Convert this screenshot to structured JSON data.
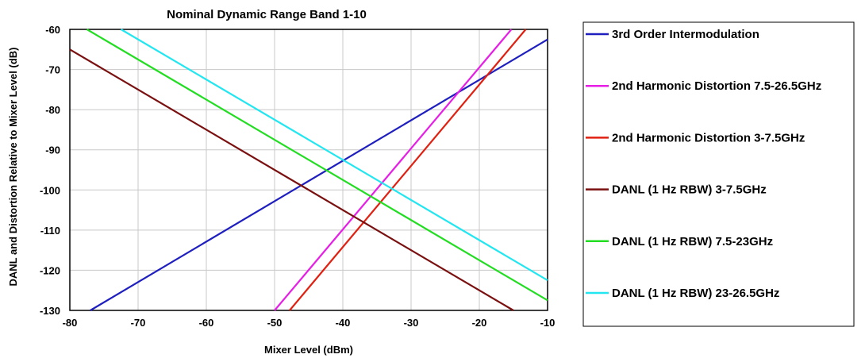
{
  "chart_data": {
    "type": "line",
    "title": "Nominal Dynamic Range Band 1-10",
    "xlabel": "Mixer Level (dBm)",
    "ylabel": "DANL and Distortion Relative to Mixer Level (dB)",
    "xlim": [
      -80,
      -10
    ],
    "ylim": [
      -130,
      -60
    ],
    "xticks": [
      -80,
      -70,
      -60,
      -50,
      -40,
      -30,
      -20,
      -10
    ],
    "yticks": [
      -60,
      -70,
      -80,
      -90,
      -100,
      -110,
      -120,
      -130
    ],
    "grid": true,
    "legend_position": "right",
    "series": [
      {
        "name": "3rd Order Intermodulation",
        "color": "#1f1fbf",
        "x": [
          -77,
          -10
        ],
        "y": [
          -130,
          -62.5
        ]
      },
      {
        "name": "2nd Harmonic Distortion 7.5-26.5GHz",
        "color": "#e61ee6",
        "x": [
          -50,
          -15.3
        ],
        "y": [
          -130,
          -60
        ]
      },
      {
        "name": "2nd Harmonic Distortion 3-7.5GHz",
        "color": "#e02010",
        "x": [
          -47.8,
          -13.2
        ],
        "y": [
          -130,
          -60
        ]
      },
      {
        "name": "DANL (1 Hz RBW) 3-7.5GHz",
        "color": "#7a1010",
        "x": [
          -80,
          -15
        ],
        "y": [
          -65,
          -130
        ]
      },
      {
        "name": "DANL (1 Hz RBW) 7.5-23GHz",
        "color": "#22dd22",
        "x": [
          -77.5,
          -10
        ],
        "y": [
          -60,
          -127.5
        ]
      },
      {
        "name": "DANL (1 Hz RBW) 23-26.5GHz",
        "color": "#22e6f0",
        "x": [
          -72.5,
          -10
        ],
        "y": [
          -60,
          -122.5
        ]
      }
    ]
  }
}
